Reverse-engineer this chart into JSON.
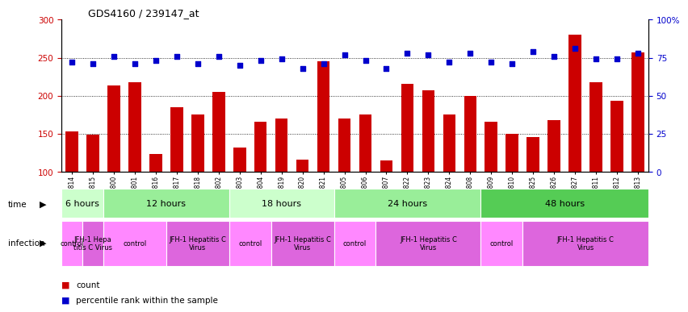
{
  "title": "GDS4160 / 239147_at",
  "samples": [
    "GSM523814",
    "GSM523815",
    "GSM523800",
    "GSM523801",
    "GSM523816",
    "GSM523817",
    "GSM523818",
    "GSM523802",
    "GSM523803",
    "GSM523804",
    "GSM523819",
    "GSM523820",
    "GSM523821",
    "GSM523805",
    "GSM523806",
    "GSM523807",
    "GSM523822",
    "GSM523823",
    "GSM523824",
    "GSM523808",
    "GSM523809",
    "GSM523810",
    "GSM523825",
    "GSM523826",
    "GSM523827",
    "GSM523811",
    "GSM523812",
    "GSM523813"
  ],
  "counts": [
    153,
    148,
    213,
    218,
    123,
    185,
    175,
    205,
    131,
    165,
    170,
    116,
    245,
    170,
    175,
    115,
    215,
    207,
    175,
    200,
    165,
    150,
    145,
    168,
    280,
    218,
    193,
    257
  ],
  "percentiles": [
    72,
    71,
    76,
    71,
    73,
    76,
    71,
    76,
    70,
    73,
    74,
    68,
    71,
    77,
    73,
    68,
    78,
    77,
    72,
    78,
    72,
    71,
    79,
    76,
    81,
    74,
    74,
    78
  ],
  "bar_color": "#cc0000",
  "dot_color": "#0000cc",
  "ylim_left": [
    100,
    300
  ],
  "ylim_right": [
    0,
    100
  ],
  "yticks_left": [
    100,
    150,
    200,
    250,
    300
  ],
  "yticks_right": [
    0,
    25,
    50,
    75,
    100
  ],
  "ytick_right_labels": [
    "0",
    "25",
    "50",
    "75",
    "100%"
  ],
  "grid_lines": [
    150,
    200,
    250
  ],
  "time_groups": [
    {
      "label": "6 hours",
      "start": 0,
      "end": 2,
      "color": "#ccffcc"
    },
    {
      "label": "12 hours",
      "start": 2,
      "end": 8,
      "color": "#99ee99"
    },
    {
      "label": "18 hours",
      "start": 8,
      "end": 13,
      "color": "#ccffcc"
    },
    {
      "label": "24 hours",
      "start": 13,
      "end": 20,
      "color": "#99ee99"
    },
    {
      "label": "48 hours",
      "start": 20,
      "end": 28,
      "color": "#55cc55"
    }
  ],
  "infection_groups": [
    {
      "label": "control",
      "start": 0,
      "end": 1,
      "color": "#ff88ff"
    },
    {
      "label": "JFH-1 Hepa\ntitis C Virus",
      "start": 1,
      "end": 2,
      "color": "#dd66dd"
    },
    {
      "label": "control",
      "start": 2,
      "end": 5,
      "color": "#ff88ff"
    },
    {
      "label": "JFH-1 Hepatitis C\nVirus",
      "start": 5,
      "end": 8,
      "color": "#dd66dd"
    },
    {
      "label": "control",
      "start": 8,
      "end": 10,
      "color": "#ff88ff"
    },
    {
      "label": "JFH-1 Hepatitis C\nVirus",
      "start": 10,
      "end": 13,
      "color": "#dd66dd"
    },
    {
      "label": "control",
      "start": 13,
      "end": 15,
      "color": "#ff88ff"
    },
    {
      "label": "JFH-1 Hepatitis C\nVirus",
      "start": 15,
      "end": 20,
      "color": "#dd66dd"
    },
    {
      "label": "control",
      "start": 20,
      "end": 22,
      "color": "#ff88ff"
    },
    {
      "label": "JFH-1 Hepatitis C\nVirus",
      "start": 22,
      "end": 28,
      "color": "#dd66dd"
    }
  ],
  "plot_bg": "#ffffff",
  "fig_bg": "#ffffff"
}
